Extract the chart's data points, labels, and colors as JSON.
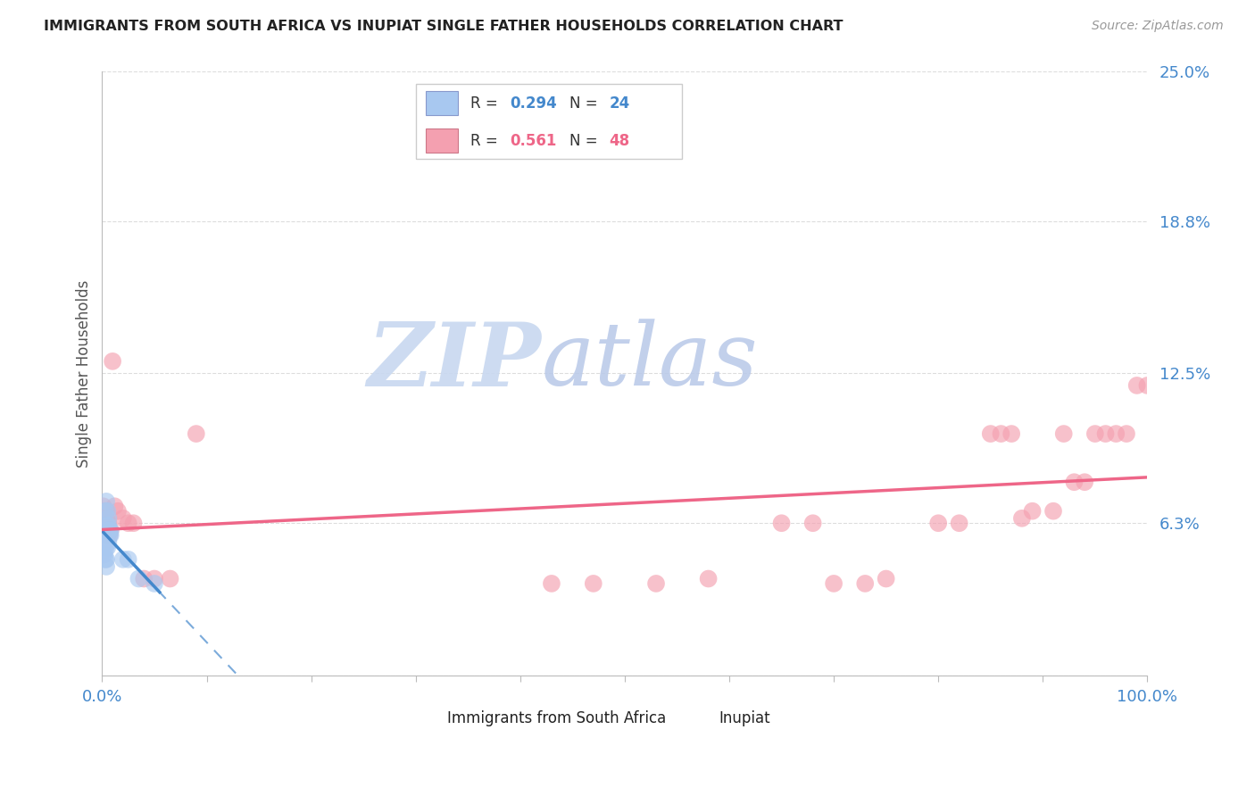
{
  "title": "IMMIGRANTS FROM SOUTH AFRICA VS INUPIAT SINGLE FATHER HOUSEHOLDS CORRELATION CHART",
  "source": "Source: ZipAtlas.com",
  "ylabel": "Single Father Households",
  "xlim": [
    0,
    1.0
  ],
  "ylim": [
    0,
    0.25
  ],
  "ytick_vals": [
    0.0,
    0.063,
    0.125,
    0.188,
    0.25
  ],
  "ytick_labels": [
    "",
    "6.3%",
    "12.5%",
    "18.8%",
    "25.0%"
  ],
  "xtick_vals": [
    0.0,
    0.1,
    0.2,
    0.3,
    0.4,
    0.5,
    0.6,
    0.7,
    0.8,
    0.9,
    1.0
  ],
  "xtick_labels": [
    "0.0%",
    "",
    "",
    "",
    "",
    "",
    "",
    "",
    "",
    "",
    "100.0%"
  ],
  "legend_blue_R": "0.294",
  "legend_blue_N": "24",
  "legend_pink_R": "0.561",
  "legend_pink_N": "48",
  "blue_fill_color": "#A8C8F0",
  "pink_fill_color": "#F4A0B0",
  "blue_line_color": "#4488CC",
  "pink_line_color": "#EE6688",
  "blue_scatter": [
    [
      0.002,
      0.055
    ],
    [
      0.003,
      0.068
    ],
    [
      0.004,
      0.072
    ],
    [
      0.005,
      0.068
    ],
    [
      0.006,
      0.065
    ],
    [
      0.003,
      0.06
    ],
    [
      0.005,
      0.062
    ],
    [
      0.004,
      0.058
    ],
    [
      0.002,
      0.05
    ],
    [
      0.003,
      0.052
    ],
    [
      0.006,
      0.062
    ],
    [
      0.007,
      0.058
    ],
    [
      0.004,
      0.048
    ],
    [
      0.008,
      0.06
    ],
    [
      0.005,
      0.053
    ],
    [
      0.003,
      0.048
    ],
    [
      0.006,
      0.055
    ],
    [
      0.004,
      0.045
    ],
    [
      0.008,
      0.058
    ],
    [
      0.007,
      0.06
    ],
    [
      0.02,
      0.048
    ],
    [
      0.025,
      0.048
    ],
    [
      0.035,
      0.04
    ],
    [
      0.05,
      0.038
    ]
  ],
  "pink_scatter": [
    [
      0.001,
      0.07
    ],
    [
      0.002,
      0.068
    ],
    [
      0.002,
      0.065
    ],
    [
      0.003,
      0.063
    ],
    [
      0.003,
      0.06
    ],
    [
      0.004,
      0.068
    ],
    [
      0.004,
      0.065
    ],
    [
      0.005,
      0.058
    ],
    [
      0.005,
      0.06
    ],
    [
      0.006,
      0.063
    ],
    [
      0.007,
      0.058
    ],
    [
      0.008,
      0.06
    ],
    [
      0.01,
      0.13
    ],
    [
      0.012,
      0.07
    ],
    [
      0.015,
      0.068
    ],
    [
      0.02,
      0.065
    ],
    [
      0.025,
      0.063
    ],
    [
      0.03,
      0.063
    ],
    [
      0.04,
      0.04
    ],
    [
      0.05,
      0.04
    ],
    [
      0.065,
      0.04
    ],
    [
      0.09,
      0.1
    ],
    [
      0.43,
      0.038
    ],
    [
      0.47,
      0.038
    ],
    [
      0.53,
      0.038
    ],
    [
      0.58,
      0.04
    ],
    [
      0.65,
      0.063
    ],
    [
      0.68,
      0.063
    ],
    [
      0.7,
      0.038
    ],
    [
      0.73,
      0.038
    ],
    [
      0.75,
      0.04
    ],
    [
      0.8,
      0.063
    ],
    [
      0.82,
      0.063
    ],
    [
      0.85,
      0.1
    ],
    [
      0.86,
      0.1
    ],
    [
      0.87,
      0.1
    ],
    [
      0.88,
      0.065
    ],
    [
      0.89,
      0.068
    ],
    [
      0.91,
      0.068
    ],
    [
      0.92,
      0.1
    ],
    [
      0.93,
      0.08
    ],
    [
      0.94,
      0.08
    ],
    [
      0.95,
      0.1
    ],
    [
      0.96,
      0.1
    ],
    [
      0.97,
      0.1
    ],
    [
      0.98,
      0.1
    ],
    [
      0.99,
      0.12
    ],
    [
      1.0,
      0.12
    ]
  ],
  "watermark_zip": "ZIP",
  "watermark_atlas": "atlas",
  "background_color": "#FFFFFF",
  "grid_color": "#DDDDDD"
}
